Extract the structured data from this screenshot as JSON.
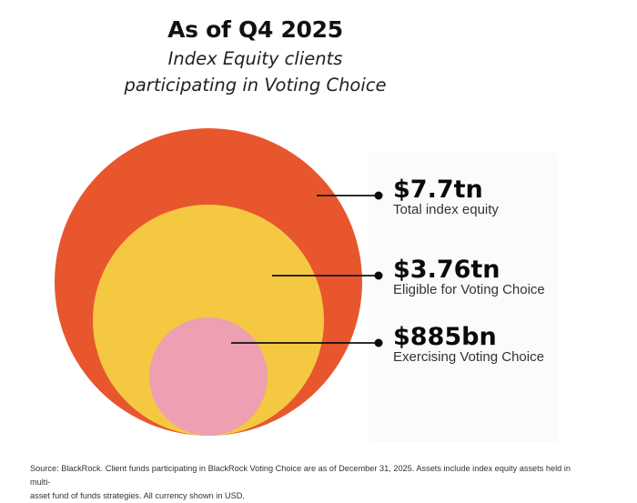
{
  "header": {
    "title": "As of Q4 2025",
    "subtitle_line1": "Index Equity clients",
    "subtitle_line2": "participating in Voting Choice"
  },
  "chart_data": {
    "type": "nested-circles",
    "title": "As of Q4 2025",
    "subtitle": "Index Equity clients participating in Voting Choice",
    "unit": "USD",
    "series": [
      {
        "name": "Total index equity",
        "value_label": "$7.7tn",
        "value": 7.7,
        "value_unit": "trillion",
        "color": "#E8562E"
      },
      {
        "name": "Eligible for Voting Choice",
        "value_label": "$3.76tn",
        "value": 3.76,
        "value_unit": "trillion",
        "color": "#F5C842"
      },
      {
        "name": "Exercising Voting Choice",
        "value_label": "$885bn",
        "value": 0.885,
        "value_unit": "trillion",
        "color": "#EE9FB2"
      }
    ]
  },
  "footnote": {
    "line1": "Source: BlackRock. Client funds participating in BlackRock Voting Choice are as of December 31, 2025. Assets include index equity assets held in multi-",
    "line2": "asset fund of funds strategies. All currency shown in USD."
  }
}
